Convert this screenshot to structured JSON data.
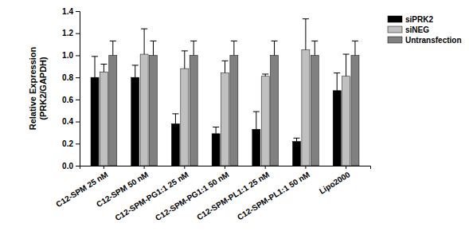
{
  "chart_data": {
    "type": "bar",
    "y_label": [
      "Relative Expression",
      "(PRK2/GAPDH)"
    ],
    "categories": [
      "C12-SPM 25 nM",
      "C12-SPM 50 nM",
      "C12-SPM-PG1:1 25 nM",
      "C12-SPM-PG1:1 50 nM",
      "C12-SPM-PL1:1 25 nM",
      "C12-SPM-PL1:1 50 nM",
      "Lipo2000"
    ],
    "series": [
      {
        "name": "siPRK2",
        "color": "#000000",
        "values": [
          0.8,
          0.8,
          0.38,
          0.29,
          0.33,
          0.22,
          0.68
        ],
        "errors": [
          0.19,
          0.11,
          0.09,
          0.06,
          0.16,
          0.03,
          0.16
        ]
      },
      {
        "name": "siNEG",
        "color": "#c0c0c0",
        "values": [
          0.85,
          1.01,
          0.88,
          0.84,
          0.81,
          1.05,
          0.81
        ],
        "errors": [
          0.07,
          0.23,
          0.16,
          0.11,
          0.02,
          0.28,
          0.2
        ]
      },
      {
        "name": "Untransfection",
        "color": "#808080",
        "values": [
          1.0,
          1.0,
          1.0,
          1.0,
          1.0,
          1.0,
          1.0
        ],
        "errors": [
          0.13,
          0.13,
          0.13,
          0.13,
          0.13,
          0.13,
          0.13
        ]
      }
    ],
    "ylim": [
      0,
      1.4
    ],
    "yticks": [
      {
        "value": 0,
        "label": "0.0"
      },
      {
        "value": 0.2,
        "label": "0.2"
      },
      {
        "value": 0.4,
        "label": "0.4"
      },
      {
        "value": 0.6,
        "label": "0.6"
      },
      {
        "value": 0.8,
        "label": "0.8"
      },
      {
        "value": 1.0,
        "label": "1.0"
      },
      {
        "value": 1.2,
        "label": "1.2"
      },
      {
        "value": 1.4,
        "label": "1.4"
      }
    ],
    "legend": "top-right",
    "grid": false
  }
}
